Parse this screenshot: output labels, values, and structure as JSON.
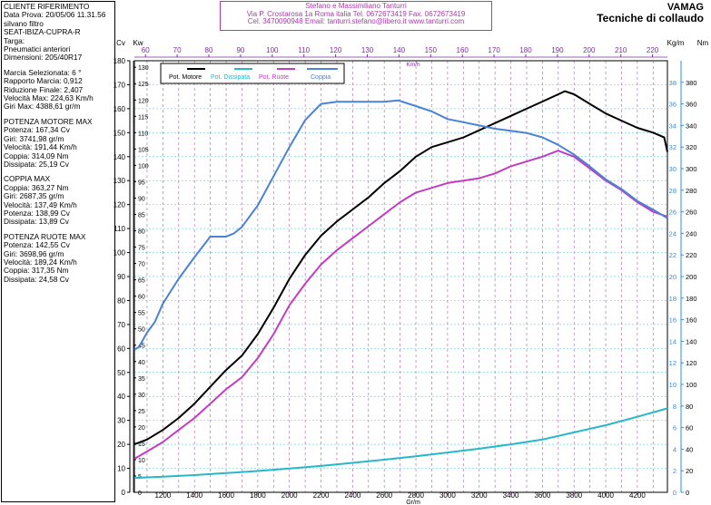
{
  "info": {
    "header": {
      "title": "CLIENTE RIFERIMENTO",
      "date_label": "Data Prova:",
      "date": "20/05/06 11.31.56",
      "lines": [
        "silvano filtro",
        "SEAT-IBIZA-CUPRA-R",
        "Targa:",
        "Pneumatici anteriori",
        "Dimensioni: 205/40R17"
      ]
    },
    "gear": [
      "Marcia Selezionata: 6 °",
      "Rapporto Marcia: 0,912",
      "Riduzione Finale: 2,407",
      "Velocità Max: 224,63 Km/h",
      "Giri Max: 4388,61 gr/m"
    ],
    "potenza_motore": [
      "POTENZA MOTORE MAX",
      "Potenza: 167,34 Cv",
      "Giri: 3741,98 gr/m",
      "Velocità: 191,44 Km/h",
      "Coppia: 314,09 Nm",
      "Dissipata: 25,19 Cv"
    ],
    "coppia": [
      "COPPIA MAX",
      "Coppia: 363,27 Nm",
      "Giri: 2687,35 gr/m",
      "Velocità: 137,49 Km/h",
      "Potenza: 138,99 Cv",
      "Dissipata: 13,89 Cv"
    ],
    "potenza_ruote": [
      "POTENZA RUOTE MAX",
      "Potenza: 142,55 Cv",
      "Giri: 3698,96 gr/m",
      "Velocità: 189,24 Km/h",
      "Coppia: 317,35 Nm",
      "Dissipata: 24,58 Cv"
    ]
  },
  "header_box": {
    "line1": "Stefano e Massimiliano Tanturri",
    "line2": "Via P. Crostarosa 1a  Roma  italia Tel. 0672673419 Fax. 0672673419",
    "line3": "Cel.  3470090948 Email: tanturri.stefano@libero.it www.tanturri.com"
  },
  "brand": {
    "line1": "VAMAG",
    "line2": "Tecniche di collaudo"
  },
  "colors": {
    "motore": "#000000",
    "dissipata": "#26b8c9",
    "ruote": "#c23cc2",
    "coppia": "#4a82d6",
    "grid_rpm": "#c06ac0",
    "grid_h": "#6fd3e3",
    "kmh_axis": "#7a2f9a",
    "nm_axis": "#2e8fd8"
  },
  "chart_data": {
    "type": "line",
    "title": "VAMAG Tecniche di collaudo",
    "xlabel": "Gr/m",
    "x2label": "Km/h",
    "ylabel_left": "Cv",
    "ylabel_left2": "Kw",
    "ylabel_right": "Nm",
    "ylabel_right2": "Kg/m",
    "xlim": [
      1020,
      4390
    ],
    "ylim_cv": [
      0,
      180
    ],
    "ylim_kw": [
      0,
      132
    ],
    "ylim_nm": [
      0,
      400
    ],
    "ylim_kgm": [
      0,
      40
    ],
    "x_ticks": [
      1200,
      1400,
      1600,
      1800,
      2000,
      2200,
      2400,
      2600,
      2800,
      3000,
      3200,
      3400,
      3600,
      3800,
      4000,
      4200
    ],
    "x_tick_labels": [
      "1200",
      "1400",
      "1600",
      "1800",
      "2000",
      "2200",
      "2400",
      "2600",
      "2800",
      "3000",
      "3200",
      "3400",
      "3600",
      "3800",
      "4000",
      "4200"
    ],
    "kmh_ticks": [
      60,
      70,
      80,
      90,
      100,
      110,
      120,
      130,
      140,
      150,
      160,
      170,
      180,
      190,
      200,
      210,
      220
    ],
    "kmh_tick_labels": [
      "60",
      "70",
      "80",
      "90",
      "100",
      "110",
      "120",
      "130",
      "140",
      "150",
      "160",
      "170",
      "180",
      "190",
      "200",
      "210",
      "220"
    ],
    "cv_ticks": [
      "0",
      "10",
      "20",
      "30",
      "40",
      "50",
      "60",
      "70",
      "80",
      "90",
      "100",
      "110",
      "120",
      "130",
      "140",
      "150",
      "160",
      "170",
      "180"
    ],
    "kw_ticks": [
      "0",
      "5",
      "10",
      "15",
      "20",
      "25",
      "30",
      "35",
      "40",
      "45",
      "50",
      "55",
      "60",
      "65",
      "70",
      "75",
      "80",
      "85",
      "90",
      "95",
      "100",
      "105",
      "110",
      "115",
      "120",
      "125",
      "130"
    ],
    "nm_ticks": [
      "0",
      "20",
      "40",
      "60",
      "80",
      "100",
      "120",
      "140",
      "160",
      "180",
      "200",
      "220",
      "240",
      "260",
      "280",
      "300",
      "320",
      "340",
      "360",
      "380"
    ],
    "kgm_ticks": [
      "0",
      "2",
      "4",
      "6",
      "8",
      "10",
      "12",
      "14",
      "16",
      "18",
      "20",
      "22",
      "24",
      "26",
      "28",
      "30",
      "32",
      "34",
      "36",
      "38"
    ],
    "legend": [
      "Pot. Motore",
      "Pot. Dissipata",
      "Pot. Ruote",
      "Coppia"
    ],
    "series": [
      {
        "name": "Pot. Motore",
        "axis": "cv",
        "x": [
          1020,
          1100,
          1200,
          1300,
          1400,
          1500,
          1600,
          1700,
          1800,
          1900,
          2000,
          2100,
          2200,
          2300,
          2400,
          2500,
          2600,
          2700,
          2800,
          2900,
          3000,
          3100,
          3200,
          3300,
          3400,
          3500,
          3600,
          3700,
          3742,
          3800,
          3900,
          4000,
          4100,
          4200,
          4300,
          4370,
          4390
        ],
        "y": [
          20,
          22,
          26,
          31,
          37,
          44,
          51,
          57,
          66,
          77,
          89,
          99,
          107,
          113,
          118,
          123,
          129,
          134,
          140,
          144,
          146,
          148,
          151,
          154,
          157,
          160,
          163,
          166,
          167.3,
          166,
          162,
          158,
          155,
          152,
          150,
          148,
          142
        ]
      },
      {
        "name": "Pot. Ruote",
        "axis": "cv",
        "x": [
          1020,
          1100,
          1200,
          1300,
          1400,
          1500,
          1600,
          1700,
          1800,
          1900,
          2000,
          2100,
          2200,
          2300,
          2400,
          2500,
          2600,
          2700,
          2800,
          2900,
          3000,
          3100,
          3200,
          3300,
          3400,
          3500,
          3600,
          3699,
          3800,
          3900,
          4000,
          4100,
          4200,
          4300,
          4390
        ],
        "y": [
          14,
          17,
          21,
          26,
          31,
          37,
          43,
          48,
          56,
          66,
          78,
          87,
          95,
          101,
          106,
          111,
          116,
          121,
          125,
          127,
          129,
          130,
          131,
          133,
          136,
          138,
          140,
          142.5,
          140,
          135,
          130,
          126,
          121,
          117,
          115
        ]
      },
      {
        "name": "Pot. Dissipata",
        "axis": "cv",
        "x": [
          1020,
          1200,
          1400,
          1600,
          1800,
          2000,
          2200,
          2400,
          2600,
          2800,
          3000,
          3200,
          3400,
          3600,
          3800,
          4000,
          4200,
          4390
        ],
        "y": [
          6,
          6.5,
          7.2,
          8,
          8.9,
          9.9,
          11,
          12.3,
          13.6,
          15,
          16.6,
          18.2,
          20,
          22,
          25,
          28,
          31.5,
          35
        ]
      },
      {
        "name": "Coppia",
        "axis": "nm",
        "x": [
          1020,
          1050,
          1100,
          1150,
          1200,
          1300,
          1400,
          1500,
          1600,
          1650,
          1700,
          1800,
          1900,
          2000,
          2100,
          2200,
          2300,
          2400,
          2500,
          2600,
          2687,
          2800,
          2900,
          3000,
          3100,
          3200,
          3300,
          3400,
          3500,
          3600,
          3700,
          3800,
          3900,
          4000,
          4100,
          4200,
          4300,
          4390
        ],
        "y": [
          132,
          135,
          148,
          158,
          175,
          198,
          218,
          237,
          237,
          240,
          246,
          266,
          293,
          320,
          345,
          360,
          362,
          362,
          362,
          362,
          363.3,
          358,
          353,
          346,
          343,
          340,
          337,
          335,
          333,
          329,
          322,
          313,
          302,
          290,
          281,
          270,
          262,
          254
        ]
      }
    ]
  }
}
